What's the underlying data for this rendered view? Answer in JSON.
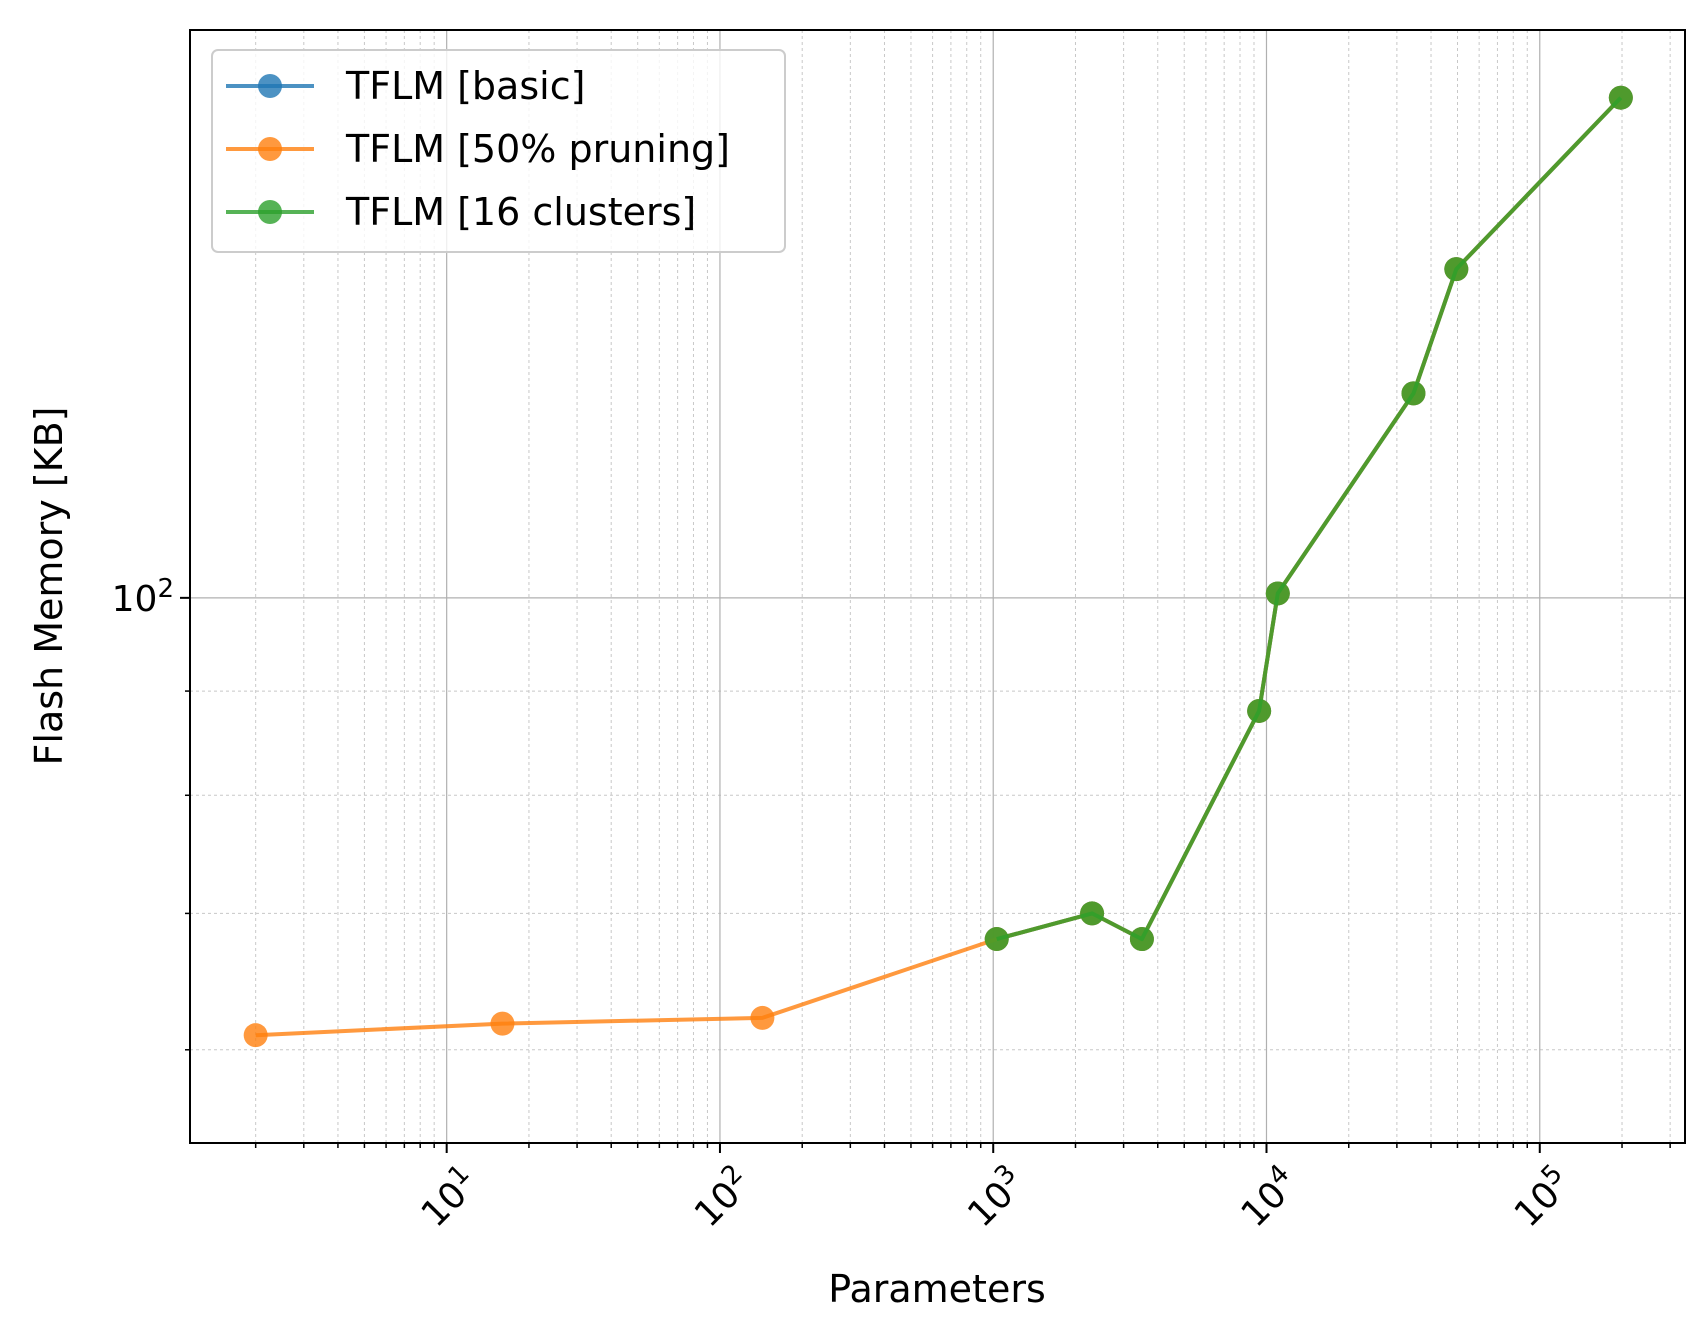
{
  "chart_data": {
    "type": "line",
    "title": "",
    "xlabel": "Parameters",
    "ylabel": "Flash Memory [KB]",
    "x_scale": "log",
    "y_scale": "log",
    "xlim": [
      1.15,
      340000
    ],
    "ylim": [
      54,
      190
    ],
    "x_ticks": [
      {
        "value": 10,
        "base": "10",
        "exp": "1"
      },
      {
        "value": 100,
        "base": "10",
        "exp": "2"
      },
      {
        "value": 1000,
        "base": "10",
        "exp": "3"
      },
      {
        "value": 10000,
        "base": "10",
        "exp": "4"
      },
      {
        "value": 100000,
        "base": "10",
        "exp": "5"
      }
    ],
    "y_ticks": [
      {
        "value": 100,
        "base": "10",
        "exp": "2"
      }
    ],
    "grid": true,
    "legend_position": "top-left",
    "series": [
      {
        "name": "TFLM [basic]",
        "color": "#1f77b4",
        "x": [
          1030,
          2300,
          3500,
          9400,
          11000,
          34500,
          49500,
          198000
        ],
        "y": [
          68.0,
          70.0,
          68.0,
          88.0,
          100.5,
          126.0,
          145.0,
          176.0
        ]
      },
      {
        "name": "TFLM [50% pruning]",
        "color": "#ff7f0e",
        "x": [
          2,
          16,
          143,
          1030,
          2300,
          3500,
          9400,
          11000,
          34500,
          49500,
          198000
        ],
        "y": [
          61.0,
          61.8,
          62.2,
          68.0,
          70.0,
          68.0,
          88.0,
          100.5,
          126.0,
          145.0,
          176.0
        ]
      },
      {
        "name": "TFLM [16 clusters]",
        "color": "#2ca02c",
        "x": [
          1030,
          2300,
          3500,
          9400,
          11000,
          34500,
          49500,
          198000
        ],
        "y": [
          68.0,
          70.0,
          68.0,
          88.0,
          100.5,
          126.0,
          145.0,
          176.0
        ]
      }
    ]
  }
}
